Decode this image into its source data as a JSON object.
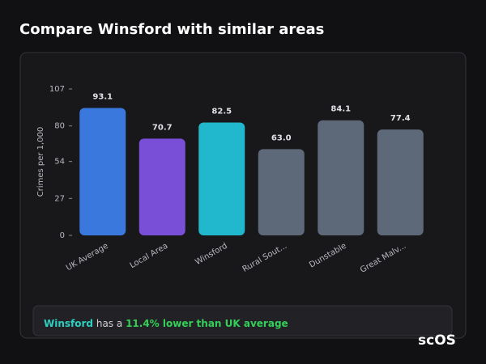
{
  "chart_data": {
    "type": "bar",
    "title": "Compare Winsford with similar areas",
    "ylabel": "Crimes per 1,000",
    "categories": [
      "UK Average",
      "Local Area",
      "Winsford",
      "Rural Sout...",
      "Dunstable",
      "Great Malv..."
    ],
    "values": [
      93.1,
      70.7,
      82.5,
      63.0,
      84.1,
      77.4
    ],
    "value_labels": [
      "93.1",
      "70.7",
      "82.5",
      "63.0",
      "84.1",
      "77.4"
    ],
    "colors": [
      "#3a78dd",
      "#7a4fd8",
      "#21b8ce",
      "#5d6879",
      "#5d6879",
      "#5d6879"
    ],
    "ylim": [
      0,
      107
    ],
    "yticks": [
      0,
      27,
      54,
      80,
      107
    ],
    "summary": {
      "place": "Winsford",
      "text": "has a",
      "highlight": "11.4% lower than UK average"
    },
    "logo": "scOS"
  }
}
